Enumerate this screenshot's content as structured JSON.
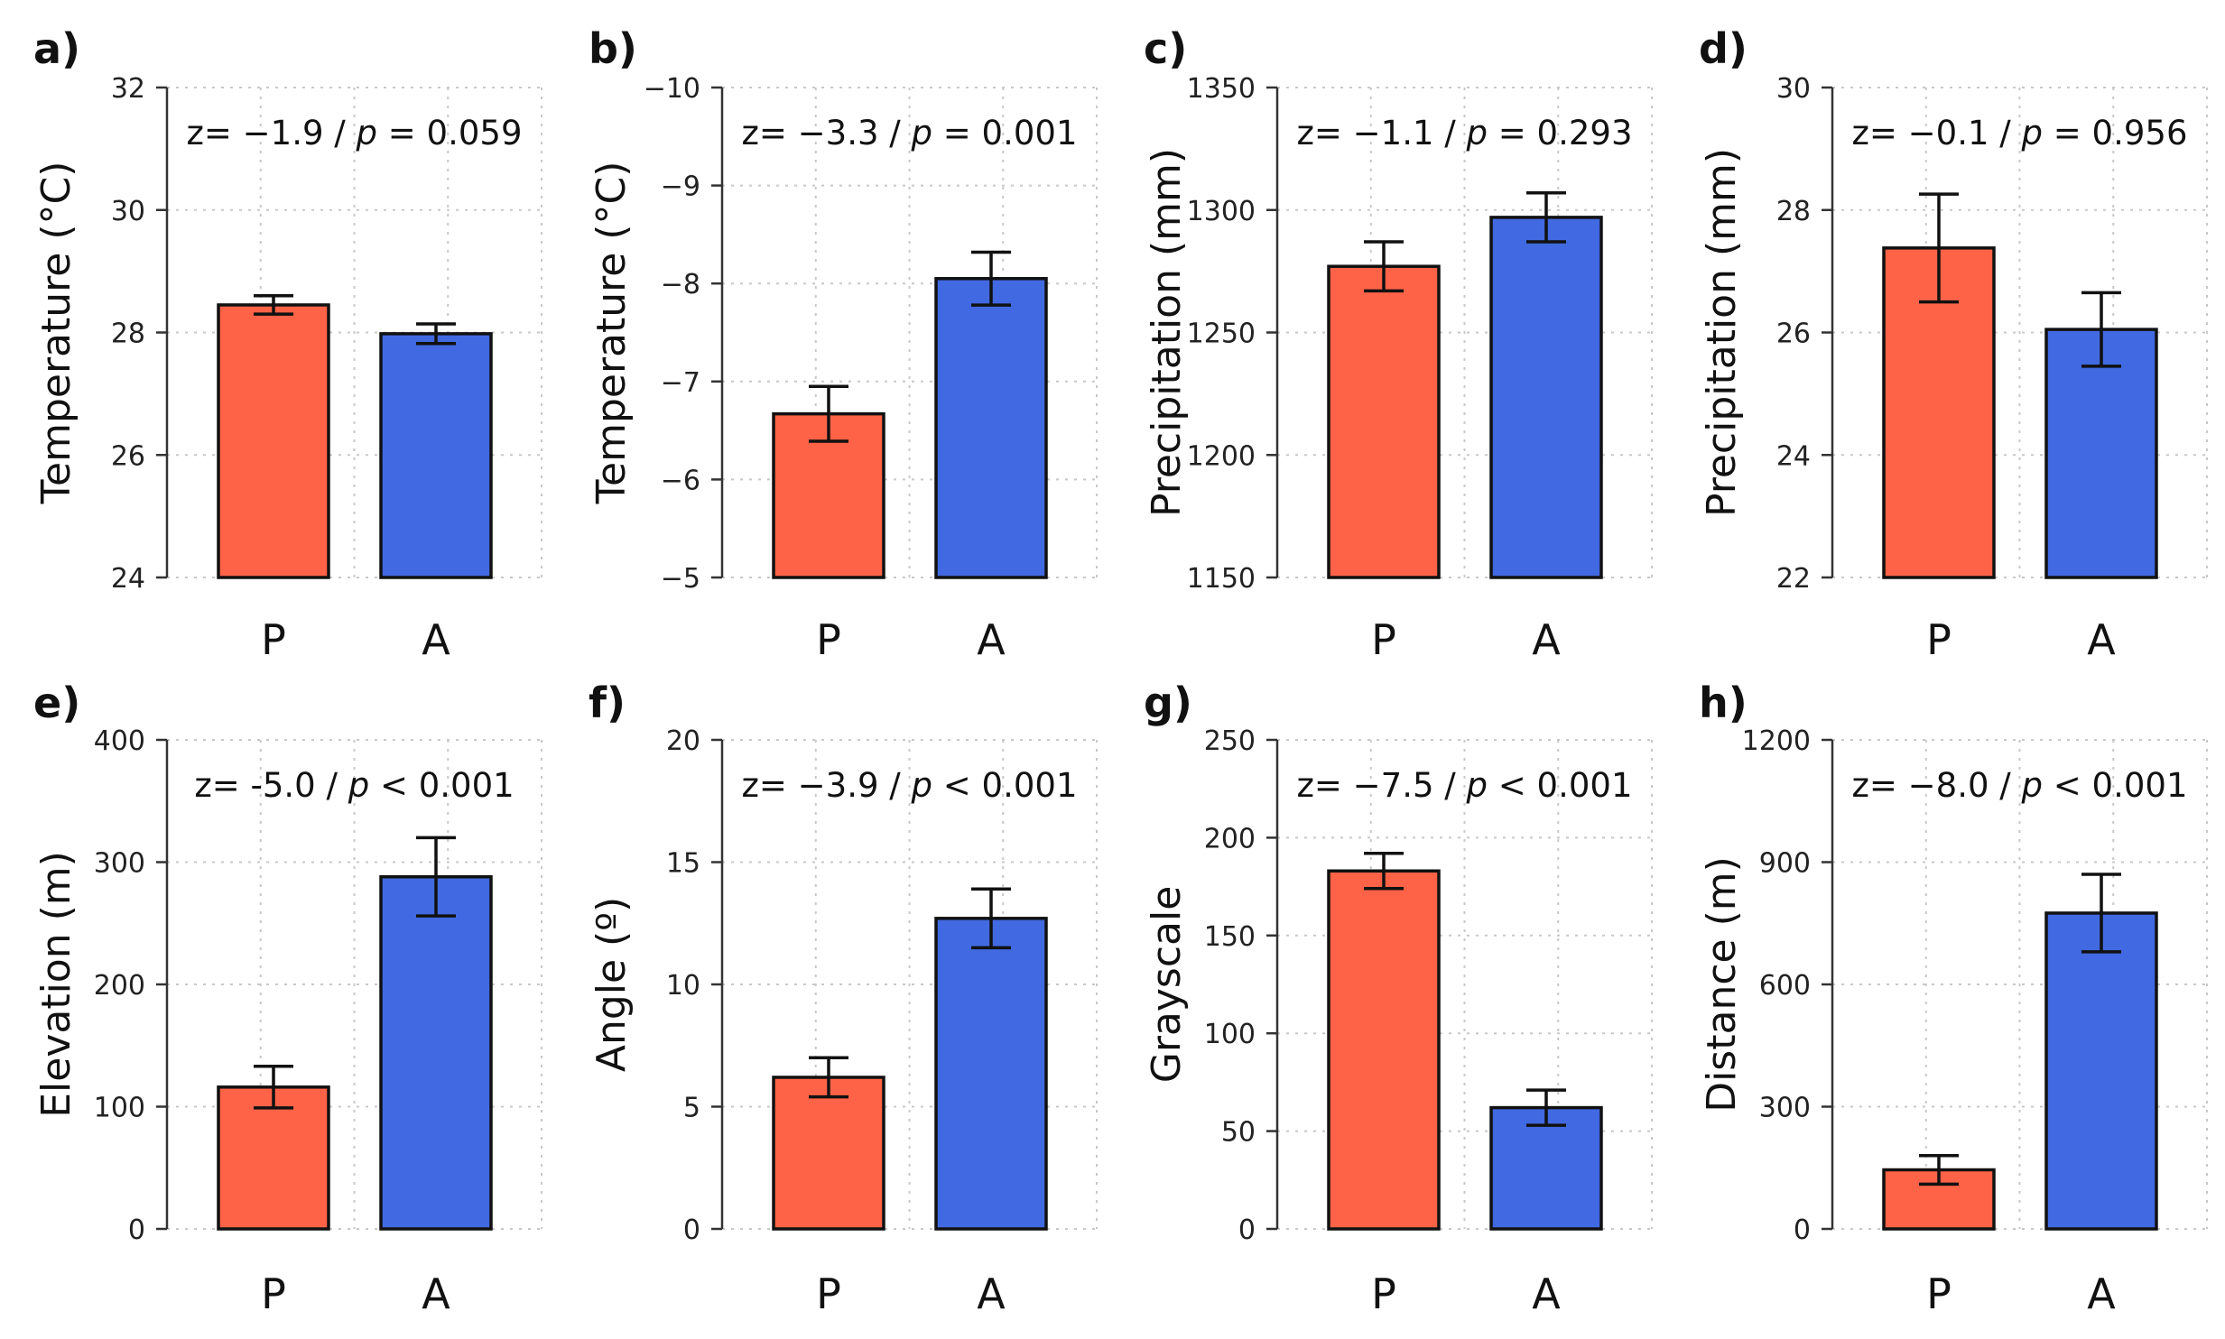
{
  "chart_data": [
    {
      "type": "bar",
      "panel": "a)",
      "categories": [
        "P",
        "A"
      ],
      "values": [
        28.45,
        27.98
      ],
      "errors": [
        0.15,
        0.16
      ],
      "ylabel": "Temperature (°C)",
      "ylim": [
        24,
        32
      ],
      "yticks": [
        24,
        26,
        28,
        30,
        32
      ],
      "ytick_labels": [
        "24",
        "26",
        "28",
        "30",
        "32"
      ],
      "annotation": {
        "z": "z= −1.9 / ",
        "p_symbol": "p",
        "rest": " = 0.059"
      }
    },
    {
      "type": "bar",
      "panel": "b)",
      "categories": [
        "P",
        "A"
      ],
      "values": [
        -6.67,
        -8.05
      ],
      "errors": [
        0.28,
        0.27
      ],
      "ylabel": "Temperature (°C)",
      "ylim": [
        -5,
        -10
      ],
      "yticks": [
        -5,
        -6,
        -7,
        -8,
        -9,
        -10
      ],
      "ytick_labels": [
        "−5",
        "−6",
        "−7",
        "−8",
        "−9",
        "−10"
      ],
      "annotation": {
        "z": "z= −3.3 / ",
        "p_symbol": "p",
        "rest": " = 0.001"
      }
    },
    {
      "type": "bar",
      "panel": "c)",
      "categories": [
        "P",
        "A"
      ],
      "values": [
        1277,
        1297
      ],
      "errors": [
        10,
        10
      ],
      "ylabel": "Precipitation (mm)",
      "ylim": [
        1150,
        1350
      ],
      "yticks": [
        1150,
        1200,
        1250,
        1300,
        1350
      ],
      "ytick_labels": [
        "1150",
        "1200",
        "1250",
        "1300",
        "1350"
      ],
      "annotation": {
        "z": "z= −1.1 / ",
        "p_symbol": "p",
        "rest": " = 0.293"
      }
    },
    {
      "type": "bar",
      "panel": "d)",
      "categories": [
        "P",
        "A"
      ],
      "values": [
        27.38,
        26.05
      ],
      "errors": [
        0.88,
        0.6
      ],
      "ylabel": "Precipitation (mm)",
      "ylim": [
        22,
        30
      ],
      "yticks": [
        22,
        24,
        26,
        28,
        30
      ],
      "ytick_labels": [
        "22",
        "24",
        "26",
        "28",
        "30"
      ],
      "annotation": {
        "z": "z= −0.1 / ",
        "p_symbol": "p",
        "rest": " = 0.956"
      }
    },
    {
      "type": "bar",
      "panel": "e)",
      "categories": [
        "P",
        "A"
      ],
      "values": [
        116,
        288
      ],
      "errors": [
        17,
        32
      ],
      "ylabel": "Elevation (m)",
      "ylim": [
        0,
        400
      ],
      "yticks": [
        0,
        100,
        200,
        300,
        400
      ],
      "ytick_labels": [
        "0",
        "100",
        "200",
        "300",
        "400"
      ],
      "annotation": {
        "z": "z= -5.0 / ",
        "p_symbol": "p",
        "rest": " < 0.001"
      }
    },
    {
      "type": "bar",
      "panel": "f)",
      "categories": [
        "P",
        "A"
      ],
      "values": [
        6.2,
        12.7
      ],
      "errors": [
        0.8,
        1.2
      ],
      "ylabel": "Angle (º)",
      "ylim": [
        0,
        20
      ],
      "yticks": [
        0,
        5,
        10,
        15,
        20
      ],
      "ytick_labels": [
        "0",
        "5",
        "10",
        "15",
        "20"
      ],
      "annotation": {
        "z": "z= −3.9 / ",
        "p_symbol": "p",
        "rest": " < 0.001"
      }
    },
    {
      "type": "bar",
      "panel": "g)",
      "categories": [
        "P",
        "A"
      ],
      "values": [
        183,
        62
      ],
      "errors": [
        9,
        9
      ],
      "ylabel": "Grayscale",
      "ylim": [
        0,
        250
      ],
      "yticks": [
        0,
        50,
        100,
        150,
        200,
        250
      ],
      "ytick_labels": [
        "0",
        "50",
        "100",
        "150",
        "200",
        "250"
      ],
      "annotation": {
        "z": "z= −7.5 / ",
        "p_symbol": "p",
        "rest": " < 0.001"
      }
    },
    {
      "type": "bar",
      "panel": "h)",
      "categories": [
        "P",
        "A"
      ],
      "values": [
        145,
        775
      ],
      "errors": [
        35,
        95
      ],
      "ylabel": "Distance (m)",
      "ylim": [
        0,
        1200
      ],
      "yticks": [
        0,
        300,
        600,
        900,
        1200
      ],
      "ytick_labels": [
        "0",
        "300",
        "600",
        "900",
        "1200"
      ],
      "annotation": {
        "z": "z= −8.0 / ",
        "p_symbol": "p",
        "rest": " < 0.001"
      }
    }
  ],
  "colors": {
    "P": "#FF6347",
    "A": "#4169E1"
  }
}
